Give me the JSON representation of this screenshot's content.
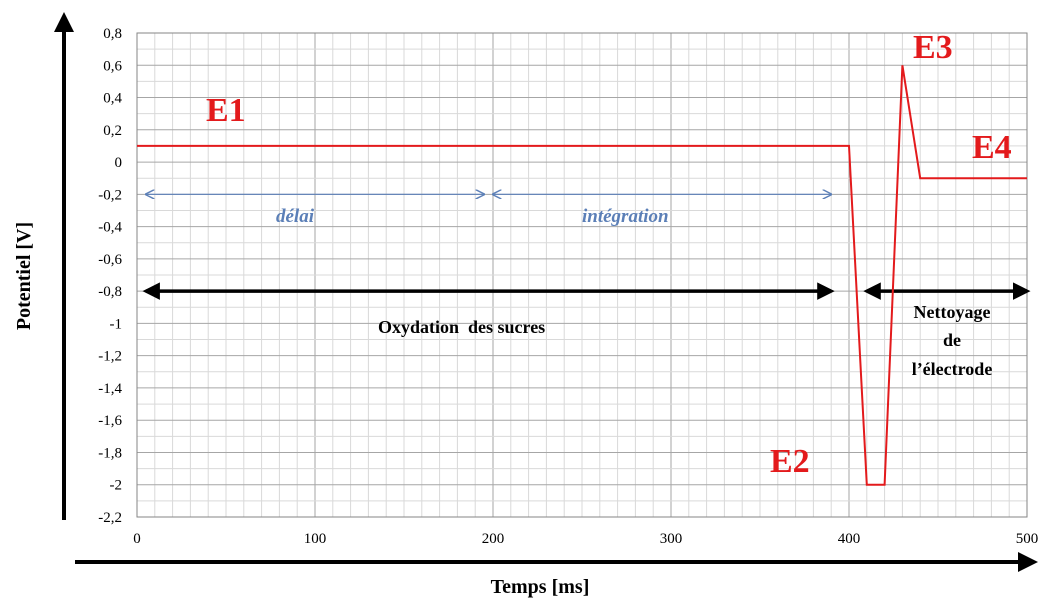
{
  "chart_data": {
    "type": "line",
    "xlabel": "Temps [ms]",
    "ylabel": "Potentiel  [V]",
    "xlim": [
      0,
      500
    ],
    "ylim": [
      -2.2,
      0.8
    ],
    "x_ticks": [
      "0",
      "100",
      "200",
      "300",
      "400",
      "500"
    ],
    "y_ticks": [
      "0,8",
      "0,6",
      "0,4",
      "0,2",
      "0",
      "-0,2",
      "-0,4",
      "-0,6",
      "-0,8",
      "-1",
      "-1,2",
      "-1,4",
      "-1,6",
      "-1,8",
      "-2",
      "-2,2"
    ],
    "grid": true,
    "series": [
      {
        "color": "#e31a1c",
        "x": [
          0,
          400,
          410,
          420,
          430,
          440,
          500
        ],
        "y": [
          0.1,
          0.1,
          -2.0,
          -2.0,
          0.6,
          -0.1,
          -0.1
        ]
      }
    ],
    "annotations": {
      "E1": "E1",
      "E2": "E2",
      "E3": "E3",
      "E4": "E4",
      "delai": "délai",
      "integration": "intégration",
      "oxydation": "Oxydation  des sucres",
      "nettoyage_line1": "Nettoyage",
      "nettoyage_line2": "de",
      "nettoyage_line3": "l’électrode"
    },
    "arrows": {
      "delai": {
        "x": [
          5,
          195
        ],
        "y": -0.2,
        "color": "#5b7fb7"
      },
      "integration": {
        "x": [
          200,
          390
        ],
        "y": -0.2,
        "color": "#5b7fb7"
      },
      "oxydation": {
        "x": [
          5,
          390
        ],
        "y": -0.8,
        "color": "#000000"
      },
      "nettoyage": {
        "x": [
          410,
          500
        ],
        "y": -0.8,
        "color": "#000000"
      }
    }
  }
}
